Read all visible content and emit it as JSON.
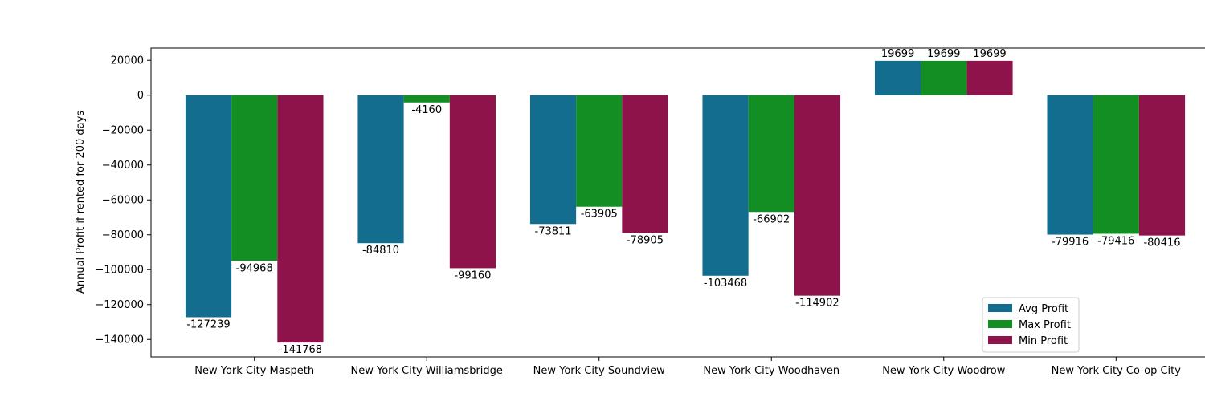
{
  "chart_data": {
    "type": "bar",
    "title": "",
    "xlabel": "",
    "ylabel": "Annual Profit if rented for 200 days",
    "ylim": [
      -150000,
      27000
    ],
    "yticks": [
      20000,
      0,
      -20000,
      -40000,
      -60000,
      -80000,
      -100000,
      -120000,
      -140000
    ],
    "grid": false,
    "legend_position": "lower-right",
    "categories": [
      "New York City Maspeth",
      "New York City Williamsbridge",
      "New York City Soundview",
      "New York City Woodhaven",
      "New York City Woodrow",
      "New York City Co-op City"
    ],
    "series": [
      {
        "name": "Avg Profit",
        "color": "#136d8e",
        "values": [
          -127239,
          -84810,
          -73811,
          -103468,
          19699,
          -79916
        ]
      },
      {
        "name": "Max Profit",
        "color": "#138e22",
        "values": [
          -94968,
          -4160,
          -63905,
          -66902,
          19699,
          -79416
        ]
      },
      {
        "name": "Min Profit",
        "color": "#8e134b",
        "values": [
          -141768,
          -99160,
          -78905,
          -114902,
          19699,
          -80416
        ]
      }
    ]
  }
}
